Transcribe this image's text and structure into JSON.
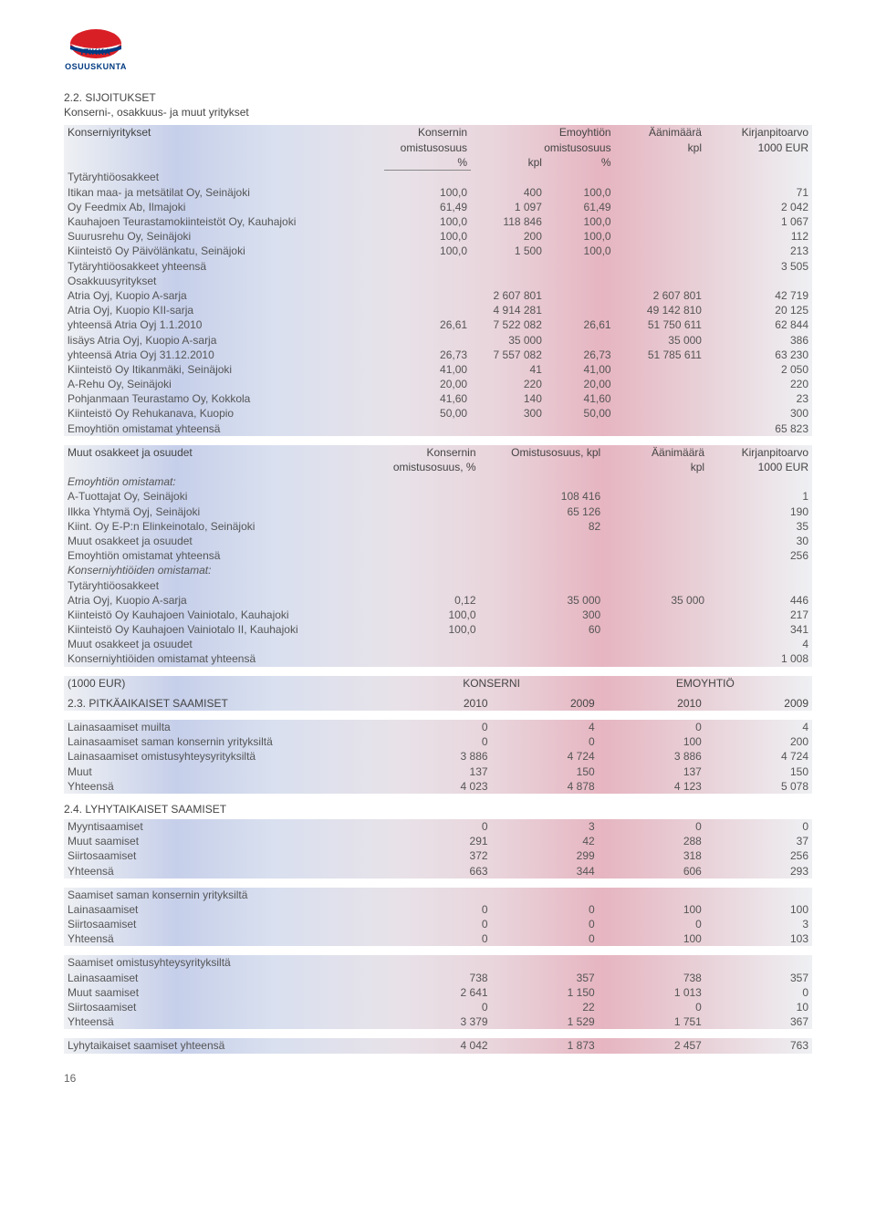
{
  "logo_text": "OSUUSKUNTA",
  "title_num": "2.2. SIJOITUKSET",
  "title_sub": "Konserni-, osakkuus- ja muut yritykset",
  "T1": {
    "hdr": {
      "konserniyritykset": "Konserniyritykset",
      "konsernin": "Konsernin",
      "omistusosuus": "omistusosuus",
      "pct": "%",
      "emoyhtion": "Emoyhtiön",
      "emo_om": "omistusosuus",
      "kpl": "kpl",
      "aanimaara": "Äänimäärä",
      "kirjanpitoarvo": "Kirjanpitoarvo",
      "eur": "1000 EUR"
    },
    "tytar_hdr": "Tytäryhtiöosakkeet",
    "rows_tytar": [
      {
        "l": "Itikan maa- ja metsätilat Oy, Seinäjoki",
        "a": "100,0",
        "b": "400",
        "c": "100,0",
        "d": "",
        "e": "71"
      },
      {
        "l": "Oy Feedmix Ab, Ilmajoki",
        "a": "61,49",
        "b": "1 097",
        "c": "61,49",
        "d": "",
        "e": "2 042"
      },
      {
        "l": "Kauhajoen Teurastamokiinteistöt Oy, Kauhajoki",
        "a": "100,0",
        "b": "118 846",
        "c": "100,0",
        "d": "",
        "e": "1 067"
      },
      {
        "l": "Suurusrehu Oy, Seinäjoki",
        "a": "100,0",
        "b": "200",
        "c": "100,0",
        "d": "",
        "e": "112"
      },
      {
        "l": "Kiinteistö Oy Päivölänkatu, Seinäjoki",
        "a": "100,0",
        "b": "1 500",
        "c": "100,0",
        "d": "",
        "e": "213"
      },
      {
        "l": "Tytäryhtiöosakkeet yhteensä",
        "a": "",
        "b": "",
        "c": "",
        "d": "",
        "e": "3 505"
      }
    ],
    "osak_hdr": "Osakkuusyritykset",
    "rows_osak": [
      {
        "l": "Atria Oyj, Kuopio   A-sarja",
        "a": "",
        "b": "2 607 801",
        "c": "",
        "d": "2 607 801",
        "e": "42 719"
      },
      {
        "l": "Atria Oyj, Kuopio   KII-sarja",
        "a": "",
        "b": "4 914 281",
        "c": "",
        "d": "49 142 810",
        "e": "20 125"
      },
      {
        "l": "yhteensä Atria Oyj  1.1.2010",
        "a": "26,61",
        "b": "7 522 082",
        "c": "26,61",
        "d": "51 750 611",
        "e": "62 844"
      },
      {
        "l": "lisäys Atria Oyj, Kuopio  A-sarja",
        "a": "",
        "b": "35 000",
        "c": "",
        "d": "35 000",
        "e": "386"
      },
      {
        "l": "yhteensä Atria Oyj  31.12.2010",
        "a": "26,73",
        "b": "7 557 082",
        "c": "26,73",
        "d": "51 785 611",
        "e": "63 230"
      },
      {
        "l": "Kiinteistö Oy Itikanmäki, Seinäjoki",
        "a": "41,00",
        "b": "41",
        "c": "41,00",
        "d": "",
        "e": "2 050"
      },
      {
        "l": "A-Rehu Oy, Seinäjoki",
        "a": "20,00",
        "b": "220",
        "c": "20,00",
        "d": "",
        "e": "220"
      },
      {
        "l": "Pohjanmaan Teurastamo Oy, Kokkola",
        "a": "41,60",
        "b": "140",
        "c": "41,60",
        "d": "",
        "e": "23"
      },
      {
        "l": "Kiinteistö Oy Rehukanava, Kuopio",
        "a": "50,00",
        "b": "300",
        "c": "50,00",
        "d": "",
        "e": "300"
      },
      {
        "l": "Emoyhtiön omistamat yhteensä",
        "a": "",
        "b": "",
        "c": "",
        "d": "",
        "e": "65 823"
      }
    ]
  },
  "T2": {
    "hdr": {
      "muut": "Muut osakkeet ja osuudet",
      "konsernin": "Konsernin",
      "om_pct": "omistusosuus, %",
      "om_kpl": "Omistusosuus, kpl",
      "aani": "Äänimäärä",
      "kpl": "kpl",
      "kirj": "Kirjanpitoarvo",
      "eur": "1000 EUR"
    },
    "emo_hdr": "Emoyhtiön omistamat:",
    "rows_emo": [
      {
        "l": "A-Tuottajat Oy, Seinäjoki",
        "a": "",
        "b": "108 416",
        "c": "",
        "d": "1"
      },
      {
        "l": "Ilkka Yhtymä Oyj, Seinäjoki",
        "a": "",
        "b": "65 126",
        "c": "",
        "d": "190"
      },
      {
        "l": "Kiint. Oy E-P:n Elinkeinotalo, Seinäjoki",
        "a": "",
        "b": "82",
        "c": "",
        "d": "35"
      },
      {
        "l": "Muut osakkeet ja osuudet",
        "a": "",
        "b": "",
        "c": "",
        "d": "30"
      },
      {
        "l": "Emoyhtiön omistamat yhteensä",
        "a": "",
        "b": "",
        "c": "",
        "d": "256"
      }
    ],
    "kons_hdr": "Konserniyhtiöiden omistamat:",
    "tytar2": "Tytäryhtiöosakkeet",
    "rows_kons": [
      {
        "l": "Atria Oyj, Kuopio   A-sarja",
        "a": "0,12",
        "b": "35 000",
        "c": "35 000",
        "d": "446"
      },
      {
        "l": "Kiinteistö Oy Kauhajoen Vainiotalo, Kauhajoki",
        "a": "100,0",
        "b": "300",
        "c": "",
        "d": "217"
      },
      {
        "l": "Kiinteistö Oy Kauhajoen Vainiotalo II, Kauhajoki",
        "a": "100,0",
        "b": "60",
        "c": "",
        "d": "341"
      },
      {
        "l": "Muut osakkeet ja osuudet",
        "a": "",
        "b": "",
        "c": "",
        "d": "4"
      },
      {
        "l": "Konserniyhtiöiden omistamat yhteensä",
        "a": "",
        "b": "",
        "c": "",
        "d": "1 008"
      }
    ]
  },
  "T3": {
    "hdr1000": "(1000 EUR)",
    "konserni": "KONSERNI",
    "emoyhtio": "EMOYHTIÖ",
    "yrs": [
      "2010",
      "2009",
      "2010",
      "2009"
    ],
    "s23": "2.3. PITKÄAIKAISET SAAMISET",
    "rows23": [
      {
        "l": "Lainasaamiset muilta",
        "v": [
          "0",
          "4",
          "0",
          "4"
        ]
      },
      {
        "l": "Lainasaamiset saman konsernin yrityksiltä",
        "v": [
          "0",
          "0",
          "100",
          "200"
        ]
      },
      {
        "l": "Lainasaamiset omistusyhteysyrityksiltä",
        "v": [
          "3 886",
          "4 724",
          "3 886",
          "4 724"
        ]
      },
      {
        "l": "Muut",
        "v": [
          "137",
          "150",
          "137",
          "150"
        ]
      },
      {
        "l": "Yhteensä",
        "v": [
          "4 023",
          "4 878",
          "4 123",
          "5 078"
        ]
      }
    ],
    "s24": "2.4. LYHYTAIKAISET SAAMISET",
    "rows24a": [
      {
        "l": "Myyntisaamiset",
        "v": [
          "0",
          "3",
          "0",
          "0"
        ]
      },
      {
        "l": "Muut saamiset",
        "v": [
          "291",
          "42",
          "288",
          "37"
        ]
      },
      {
        "l": "Siirtosaamiset",
        "v": [
          "372",
          "299",
          "318",
          "256"
        ]
      },
      {
        "l": "Yhteensä",
        "v": [
          "663",
          "344",
          "606",
          "293"
        ]
      }
    ],
    "saman_hdr": "Saamiset saman konsernin yrityksiltä",
    "rows24b": [
      {
        "l": "Lainasaamiset",
        "v": [
          "0",
          "0",
          "100",
          "100"
        ]
      },
      {
        "l": "Siirtosaamiset",
        "v": [
          "0",
          "0",
          "0",
          "3"
        ]
      },
      {
        "l": "Yhteensä",
        "v": [
          "0",
          "0",
          "100",
          "103"
        ]
      }
    ],
    "omis_hdr": "Saamiset omistusyhteysyrityksiltä",
    "rows24c": [
      {
        "l": "Lainasaamiset",
        "v": [
          "738",
          "357",
          "738",
          "357"
        ]
      },
      {
        "l": "Muut saamiset",
        "v": [
          "2 641",
          "1 150",
          "1 013",
          "0"
        ]
      },
      {
        "l": "Siirtosaamiset",
        "v": [
          "0",
          "22",
          "0",
          "10"
        ]
      },
      {
        "l": "Yhteensä",
        "v": [
          "3 379",
          "1 529",
          "1 751",
          "367"
        ]
      }
    ],
    "lyhyt_yht": {
      "l": "Lyhytaikaiset saamiset yhteensä",
      "v": [
        "4 042",
        "1 873",
        "2 457",
        "763"
      ]
    }
  },
  "pagenum": "16"
}
